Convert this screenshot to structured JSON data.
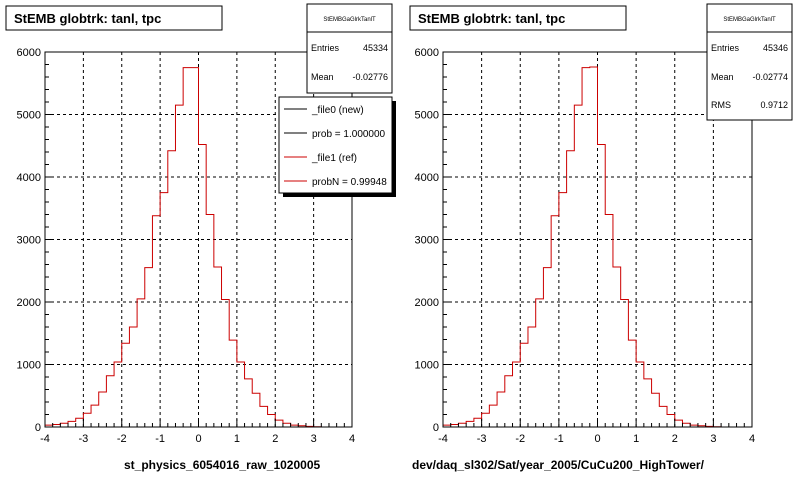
{
  "chart_data": [
    {
      "type": "histogram",
      "title": "StEMB globtrk: tanl, tpc",
      "xlabel": "st_physics_6054016_raw_1020005",
      "ylabel": "",
      "xlim": [
        -4,
        4
      ],
      "ylim": [
        0,
        6000
      ],
      "grid": true,
      "x_ticks": [
        "-4",
        "-3",
        "-2",
        "-1",
        "0",
        "1",
        "2",
        "3",
        "4"
      ],
      "y_ticks": [
        "0",
        "1000",
        "2000",
        "3000",
        "4000",
        "5000",
        "6000"
      ],
      "bin_edges": [
        -4.0,
        -3.8,
        -3.6,
        -3.4,
        -3.2,
        -3.0,
        -2.8,
        -2.6,
        -2.4,
        -2.2,
        -2.0,
        -1.8,
        -1.6,
        -1.4,
        -1.2,
        -1.0,
        -0.8,
        -0.6,
        -0.4,
        -0.2,
        0.0,
        0.2,
        0.4,
        0.6,
        0.8,
        1.0,
        1.2,
        1.4,
        1.6,
        1.8,
        2.0,
        2.2,
        2.4,
        2.6,
        2.8,
        3.0,
        3.2,
        3.4,
        3.6,
        3.8,
        4.0
      ],
      "series": [
        {
          "name": "_file1 (ref)",
          "color": "#cc0000",
          "values": [
            30,
            40,
            60,
            90,
            140,
            220,
            350,
            560,
            820,
            1040,
            1340,
            1600,
            2050,
            2550,
            3380,
            3750,
            4420,
            5150,
            5750,
            5750,
            4520,
            3400,
            2560,
            2040,
            1390,
            1040,
            770,
            540,
            330,
            200,
            110,
            60,
            30,
            20,
            10,
            5,
            0,
            0,
            0,
            0
          ]
        }
      ],
      "stats": {
        "name": "StEMBGaGlrkTanlT",
        "rows": [
          {
            "label": "Entries",
            "value": "45334"
          },
          {
            "label": "Mean",
            "value": "-0.02776"
          }
        ]
      },
      "legend": {
        "position": "top-right",
        "entries": [
          {
            "label": "_file0 (new)",
            "color": "#000000"
          },
          {
            "label": "prob = 1.000000",
            "color": "#000000"
          },
          {
            "label": "_file1 (ref)",
            "color": "#cc0000"
          },
          {
            "label": "probN = 0.99948",
            "color": "#cc0000"
          }
        ]
      }
    },
    {
      "type": "histogram",
      "title": "StEMB globtrk: tanl, tpc",
      "xlabel": "dev/daq_sl302/Sat/year_2005/CuCu200_HighTower/",
      "ylabel": "",
      "xlim": [
        -4,
        4
      ],
      "ylim": [
        0,
        6000
      ],
      "grid": true,
      "x_ticks": [
        "-4",
        "-3",
        "-2",
        "-1",
        "0",
        "1",
        "2",
        "3",
        "4"
      ],
      "y_ticks": [
        "0",
        "1000",
        "2000",
        "3000",
        "4000",
        "5000",
        "6000"
      ],
      "bin_edges": [
        -4.0,
        -3.8,
        -3.6,
        -3.4,
        -3.2,
        -3.0,
        -2.8,
        -2.6,
        -2.4,
        -2.2,
        -2.0,
        -1.8,
        -1.6,
        -1.4,
        -1.2,
        -1.0,
        -0.8,
        -0.6,
        -0.4,
        -0.2,
        0.0,
        0.2,
        0.4,
        0.6,
        0.8,
        1.0,
        1.2,
        1.4,
        1.6,
        1.8,
        2.0,
        2.2,
        2.4,
        2.6,
        2.8,
        3.0,
        3.2,
        3.4,
        3.6,
        3.8,
        4.0
      ],
      "series": [
        {
          "color": "#cc0000",
          "values": [
            30,
            40,
            60,
            90,
            140,
            220,
            350,
            560,
            820,
            1040,
            1340,
            1600,
            2050,
            2550,
            3380,
            3750,
            4420,
            5150,
            5750,
            5760,
            4520,
            3400,
            2560,
            2040,
            1390,
            1040,
            770,
            540,
            330,
            200,
            110,
            60,
            30,
            20,
            10,
            5,
            0,
            0,
            0,
            0
          ]
        }
      ],
      "stats": {
        "name": "StEMBGaGlrkTanlT",
        "rows": [
          {
            "label": "Entries",
            "value": "45346"
          },
          {
            "label": "Mean",
            "value": "-0.02774"
          },
          {
            "label": "RMS",
            "value": "0.9712"
          }
        ]
      },
      "legend": null
    }
  ]
}
